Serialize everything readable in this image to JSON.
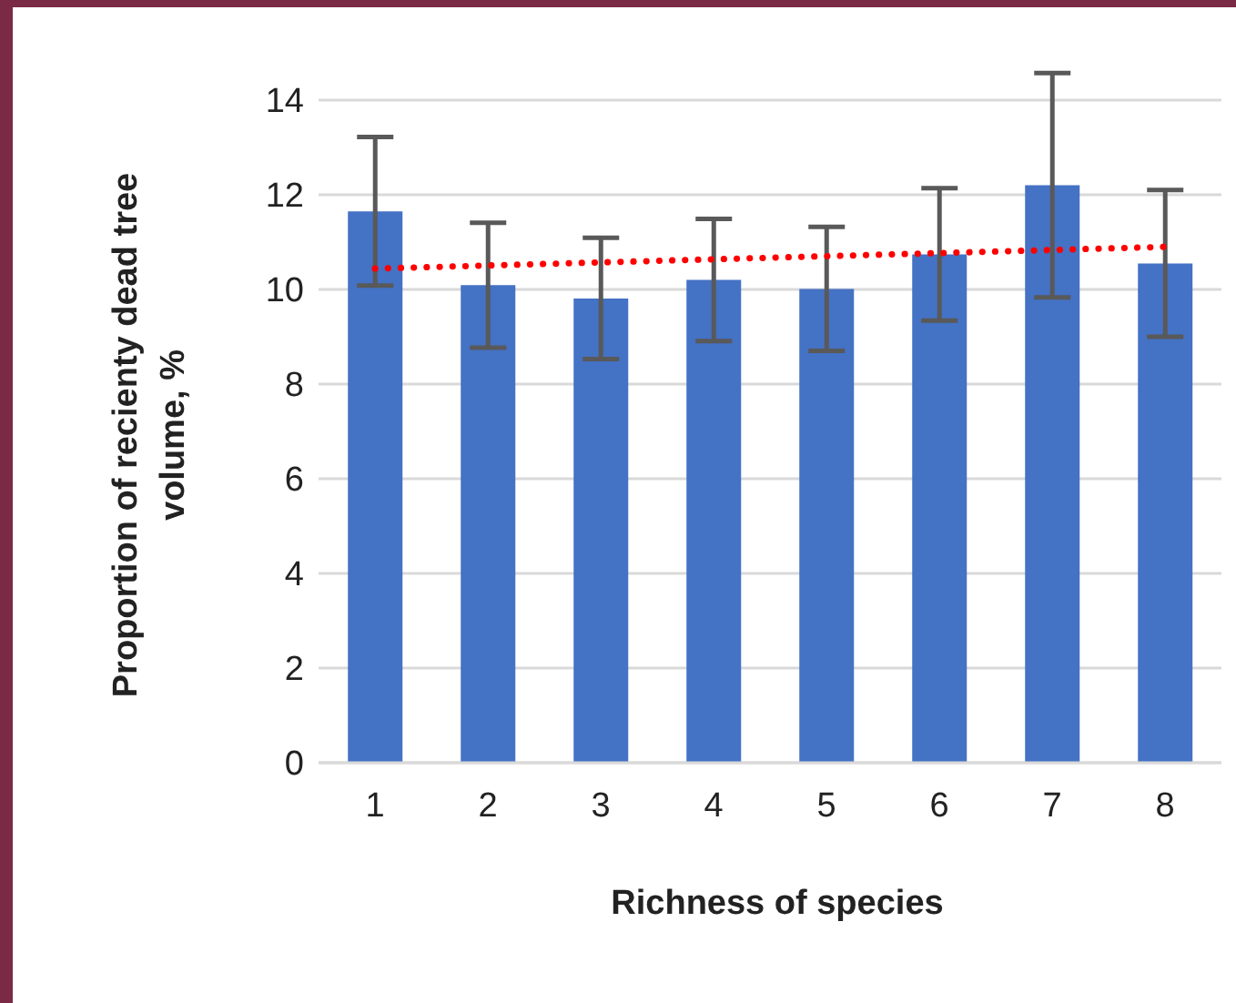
{
  "chart_data": {
    "type": "bar",
    "xlabel": "Richness of species",
    "ylabel": "Proportion of recienty dead tree volume, %",
    "categories": [
      "1",
      "2",
      "3",
      "4",
      "5",
      "6",
      "7",
      "8"
    ],
    "series": [
      {
        "color": "#4472c4",
        "values": [
          11.65,
          10.09,
          9.81,
          10.2,
          10.01,
          10.74,
          12.2,
          10.55
        ],
        "errors": [
          1.57,
          1.32,
          1.28,
          1.29,
          1.31,
          1.4,
          2.37,
          1.55
        ]
      },
      {
        "type": "line",
        "color": "#ff0000",
        "x": [
          "1",
          "8"
        ],
        "values": [
          10.44,
          10.9
        ],
        "line_style": "dotted",
        "marker": "none"
      }
    ],
    "ylim": [
      0,
      14
    ],
    "yticks": [
      0,
      2,
      4,
      6,
      8,
      10,
      12,
      14
    ],
    "grid": "y",
    "legend": false
  }
}
